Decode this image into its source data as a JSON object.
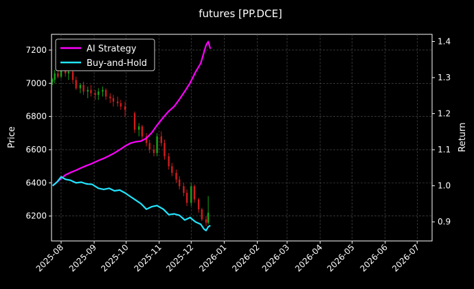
{
  "chart_data": {
    "type": "line",
    "title": "futures [PP.DCE]",
    "xlabel": "",
    "ylabel_left": "Price",
    "ylabel_right": "Return",
    "x_ticks": [
      "2025-08",
      "2025-09",
      "2025-10",
      "2025-11",
      "2025-12",
      "2026-01",
      "2026-02",
      "2026-03",
      "2026-04",
      "2026-05",
      "2026-06",
      "2026-07"
    ],
    "y_left_ticks": [
      "6200",
      "6400",
      "6600",
      "6800",
      "7000",
      "7200"
    ],
    "y_right_ticks": [
      "0.9",
      "1.0",
      "1.1",
      "1.2",
      "1.3",
      "1.4"
    ],
    "y_left_range": [
      6050,
      7295
    ],
    "y_right_range": [
      0.847,
      1.42
    ],
    "x_range": [
      "2025-07-23",
      "2026-07-15"
    ],
    "grid": true,
    "legend_position": "top-left",
    "series": [
      {
        "name": "AI Strategy",
        "axis": "right",
        "color": "#ff00ff",
        "points": [
          [
            "2025-07-24",
            1.0
          ],
          [
            "2025-07-28",
            1.01
          ],
          [
            "2025-08-01",
            1.02
          ],
          [
            "2025-08-05",
            1.03
          ],
          [
            "2025-08-10",
            1.037
          ],
          [
            "2025-08-15",
            1.043
          ],
          [
            "2025-08-20",
            1.05
          ],
          [
            "2025-08-25",
            1.056
          ],
          [
            "2025-08-30",
            1.062
          ],
          [
            "2025-09-05",
            1.07
          ],
          [
            "2025-09-10",
            1.076
          ],
          [
            "2025-09-15",
            1.083
          ],
          [
            "2025-09-20",
            1.091
          ],
          [
            "2025-09-25",
            1.1
          ],
          [
            "2025-09-30",
            1.11
          ],
          [
            "2025-10-05",
            1.118
          ],
          [
            "2025-10-10",
            1.122
          ],
          [
            "2025-10-15",
            1.124
          ],
          [
            "2025-10-20",
            1.132
          ],
          [
            "2025-10-25",
            1.147
          ],
          [
            "2025-10-30",
            1.168
          ],
          [
            "2025-11-05",
            1.19
          ],
          [
            "2025-11-10",
            1.207
          ],
          [
            "2025-11-15",
            1.22
          ],
          [
            "2025-11-20",
            1.24
          ],
          [
            "2025-11-25",
            1.262
          ],
          [
            "2025-11-30",
            1.285
          ],
          [
            "2025-12-05",
            1.315
          ],
          [
            "2025-12-10",
            1.34
          ],
          [
            "2025-12-13",
            1.37
          ],
          [
            "2025-12-15",
            1.39
          ],
          [
            "2025-12-17",
            1.4
          ],
          [
            "2025-12-19",
            1.38
          ]
        ]
      },
      {
        "name": "Buy-and-Hold",
        "axis": "right",
        "color": "#22e5ff",
        "points": [
          [
            "2025-07-24",
            1.0
          ],
          [
            "2025-07-28",
            1.01
          ],
          [
            "2025-08-01",
            1.025
          ],
          [
            "2025-08-05",
            1.018
          ],
          [
            "2025-08-10",
            1.015
          ],
          [
            "2025-08-15",
            1.008
          ],
          [
            "2025-08-20",
            1.01
          ],
          [
            "2025-08-25",
            1.005
          ],
          [
            "2025-08-30",
            1.004
          ],
          [
            "2025-09-05",
            0.993
          ],
          [
            "2025-09-10",
            0.99
          ],
          [
            "2025-09-15",
            0.993
          ],
          [
            "2025-09-20",
            0.986
          ],
          [
            "2025-09-25",
            0.988
          ],
          [
            "2025-09-30",
            0.98
          ],
          [
            "2025-10-05",
            0.97
          ],
          [
            "2025-10-10",
            0.96
          ],
          [
            "2025-10-15",
            0.95
          ],
          [
            "2025-10-20",
            0.935
          ],
          [
            "2025-10-25",
            0.942
          ],
          [
            "2025-10-30",
            0.945
          ],
          [
            "2025-11-05",
            0.935
          ],
          [
            "2025-11-10",
            0.92
          ],
          [
            "2025-11-15",
            0.922
          ],
          [
            "2025-11-20",
            0.918
          ],
          [
            "2025-11-25",
            0.905
          ],
          [
            "2025-11-30",
            0.912
          ],
          [
            "2025-12-05",
            0.9
          ],
          [
            "2025-12-10",
            0.893
          ],
          [
            "2025-12-13",
            0.88
          ],
          [
            "2025-12-15",
            0.876
          ],
          [
            "2025-12-17",
            0.886
          ],
          [
            "2025-12-19",
            0.89
          ]
        ]
      }
    ],
    "candles": [
      [
        "2025-07-24",
        7010,
        7030,
        6990,
        7020
      ],
      [
        "2025-07-26",
        7020,
        7080,
        7000,
        7060
      ],
      [
        "2025-07-29",
        7060,
        7090,
        7030,
        7040
      ],
      [
        "2025-08-01",
        7040,
        7110,
        7030,
        7100
      ],
      [
        "2025-08-05",
        7090,
        7100,
        7040,
        7060
      ],
      [
        "2025-08-08",
        7060,
        7090,
        7020,
        7070
      ],
      [
        "2025-08-12",
        7070,
        7080,
        7000,
        7020
      ],
      [
        "2025-08-15",
        7020,
        7040,
        6960,
        6970
      ],
      [
        "2025-08-19",
        6970,
        7000,
        6940,
        6990
      ],
      [
        "2025-08-22",
        6990,
        7010,
        6930,
        6950
      ],
      [
        "2025-08-26",
        6950,
        6980,
        6910,
        6960
      ],
      [
        "2025-08-29",
        6960,
        6990,
        6920,
        6940
      ],
      [
        "2025-09-02",
        6940,
        6960,
        6900,
        6930
      ],
      [
        "2025-09-05",
        6930,
        6970,
        6900,
        6950
      ],
      [
        "2025-09-09",
        6950,
        6980,
        6920,
        6960
      ],
      [
        "2025-09-12",
        6960,
        6970,
        6900,
        6920
      ],
      [
        "2025-09-16",
        6920,
        6940,
        6880,
        6910
      ],
      [
        "2025-09-19",
        6910,
        6930,
        6860,
        6890
      ],
      [
        "2025-09-23",
        6890,
        6920,
        6860,
        6880
      ],
      [
        "2025-09-26",
        6880,
        6900,
        6840,
        6860
      ],
      [
        "2025-09-30",
        6860,
        6890,
        6800,
        6840
      ],
      [
        "2025-10-09",
        6820,
        6830,
        6700,
        6720
      ],
      [
        "2025-10-13",
        6720,
        6760,
        6680,
        6740
      ],
      [
        "2025-10-16",
        6740,
        6750,
        6660,
        6680
      ],
      [
        "2025-10-20",
        6680,
        6700,
        6620,
        6640
      ],
      [
        "2025-10-23",
        6640,
        6660,
        6580,
        6600
      ],
      [
        "2025-10-27",
        6600,
        6630,
        6560,
        6580
      ],
      [
        "2025-10-30",
        6580,
        6700,
        6560,
        6680
      ],
      [
        "2025-11-03",
        6680,
        6710,
        6620,
        6640
      ],
      [
        "2025-11-06",
        6640,
        6660,
        6540,
        6560
      ],
      [
        "2025-11-10",
        6560,
        6580,
        6480,
        6500
      ],
      [
        "2025-11-13",
        6500,
        6520,
        6440,
        6460
      ],
      [
        "2025-11-17",
        6460,
        6480,
        6400,
        6420
      ],
      [
        "2025-11-20",
        6420,
        6440,
        6360,
        6380
      ],
      [
        "2025-11-24",
        6380,
        6400,
        6320,
        6340
      ],
      [
        "2025-11-27",
        6340,
        6360,
        6260,
        6280
      ],
      [
        "2025-12-01",
        6280,
        6400,
        6260,
        6380
      ],
      [
        "2025-12-04",
        6380,
        6390,
        6280,
        6300
      ],
      [
        "2025-12-08",
        6300,
        6310,
        6220,
        6240
      ],
      [
        "2025-12-11",
        6240,
        6250,
        6170,
        6180
      ],
      [
        "2025-12-15",
        6180,
        6200,
        6140,
        6160
      ],
      [
        "2025-12-17",
        6160,
        6320,
        6150,
        6220
      ]
    ]
  }
}
